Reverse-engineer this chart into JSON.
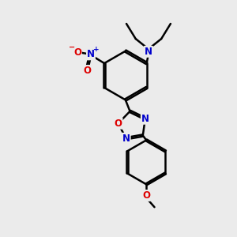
{
  "bg_color": "#ebebeb",
  "bond_color": "#000000",
  "bond_width": 1.8,
  "dbo": 0.055,
  "atom_colors": {
    "N": "#0000cc",
    "O": "#dd0000"
  },
  "fs": 8.5,
  "fs_small": 7
}
